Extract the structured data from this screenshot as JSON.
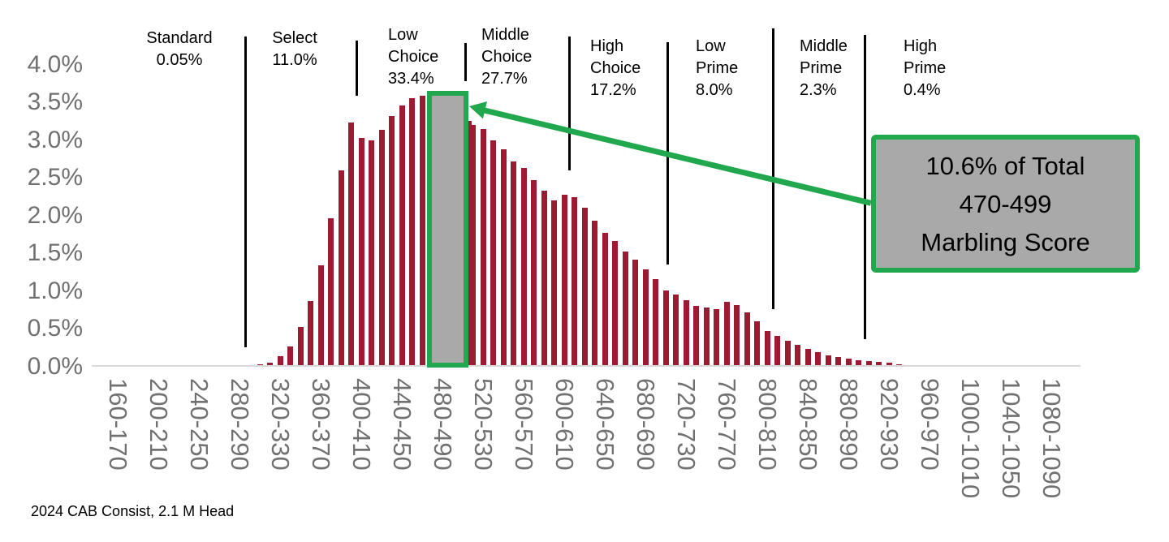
{
  "chart_data": {
    "type": "bar",
    "title": "",
    "bar_color": "#9C1B33",
    "axis_text_color": "#717171",
    "baseline_color": "#D9D9D9",
    "ylim": [
      0,
      4.0
    ],
    "grid": false,
    "y_tick_labels": [
      "0.0%",
      "0.5%",
      "1.0%",
      "1.5%",
      "2.0%",
      "2.5%",
      "3.0%",
      "3.5%",
      "4.0%"
    ],
    "x_tick_labels": [
      "160-170",
      "200-210",
      "240-250",
      "280-290",
      "320-330",
      "360-370",
      "400-410",
      "440-450",
      "480-490",
      "520-530",
      "560-570",
      "600-610",
      "640-650",
      "680-690",
      "720-730",
      "760-770",
      "800-810",
      "840-850",
      "880-890",
      "920-930",
      "960-970",
      "1000-1010",
      "1040-1050",
      "1080-1090"
    ],
    "bin_width": 10,
    "first_bin_start": 280,
    "values_pct": [
      0.01,
      0.02,
      0.03,
      0.05,
      0.13,
      0.26,
      0.52,
      0.87,
      1.34,
      1.96,
      2.6,
      3.23,
      3.03,
      3.0,
      3.13,
      3.32,
      3.46,
      3.55,
      3.59,
      3.58,
      3.55,
      3.47,
      3.25,
      3.2,
      3.14,
      2.99,
      2.88,
      2.72,
      2.63,
      2.47,
      2.33,
      2.2,
      2.27,
      2.24,
      2.1,
      1.93,
      1.77,
      1.66,
      1.52,
      1.41,
      1.28,
      1.16,
      1.01,
      0.95,
      0.88,
      0.8,
      0.78,
      0.76,
      0.86,
      0.81,
      0.72,
      0.6,
      0.47,
      0.4,
      0.34,
      0.28,
      0.23,
      0.19,
      0.15,
      0.12,
      0.1,
      0.08,
      0.07,
      0.06,
      0.05,
      0.03,
      0.02,
      0.02,
      0.015,
      0.012,
      0.01,
      0.008,
      0.012
    ],
    "grade_segments": [
      {
        "grade": "Standard",
        "share_label": "0.05%",
        "lines": [
          "Standard",
          "0.05%"
        ]
      },
      {
        "grade": "Select",
        "share_label": "11.0%",
        "lines": [
          "Select",
          "11.0%"
        ]
      },
      {
        "grade": "Low Choice",
        "share_label": "33.4%",
        "lines": [
          "Low",
          "Choice",
          "33.4%"
        ]
      },
      {
        "grade": "Middle Choice",
        "share_label": "27.7%",
        "lines": [
          "Middle",
          "Choice",
          "27.7%"
        ]
      },
      {
        "grade": "High Choice",
        "share_label": "17.2%",
        "lines": [
          "High",
          "Choice",
          "17.2%"
        ]
      },
      {
        "grade": "Low Prime",
        "share_label": "8.0%",
        "lines": [
          "Low",
          "Prime",
          "8.0%"
        ]
      },
      {
        "grade": "Middle Prime",
        "share_label": "2.3%",
        "lines": [
          "Middle",
          "Prime",
          "2.3%"
        ]
      },
      {
        "grade": "High Prime",
        "share_label": "0.4%",
        "lines": [
          "High",
          "Prime",
          "0.4%"
        ]
      }
    ],
    "highlight": {
      "range_label": "470-499",
      "share_of_total": "10.6%",
      "fill": "#A9A9A9",
      "border": "#21A74D",
      "callout_lines": [
        "10.6% of Total",
        "470-499",
        "Marbling Score"
      ]
    },
    "source_note": "2024 CAB Consist, 2.1 M Head"
  }
}
